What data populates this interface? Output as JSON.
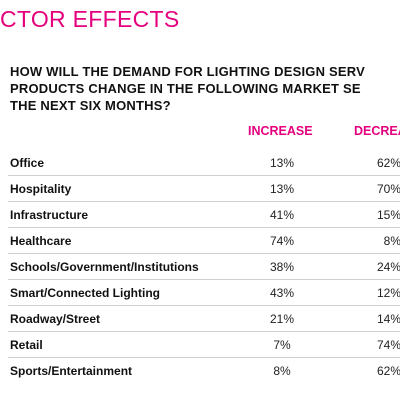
{
  "header": {
    "title": "CTOR EFFECTS"
  },
  "question": [
    "HOW WILL THE DEMAND FOR LIGHTING DESIGN SERV",
    "PRODUCTS CHANGE IN THE FOLLOWING MARKET SE",
    "THE NEXT SIX MONTHS?"
  ],
  "table": {
    "columns": [
      "INCREASE",
      "DECREA"
    ],
    "rows": [
      [
        "Office",
        "13%",
        "62%"
      ],
      [
        "Hospitality",
        "13%",
        "70%"
      ],
      [
        "Infrastructure",
        "41%",
        "15%"
      ],
      [
        "Healthcare",
        "74%",
        "8%"
      ],
      [
        "Schools/Government/Institutions",
        "38%",
        "24%"
      ],
      [
        "Smart/Connected Lighting",
        "43%",
        "12%"
      ],
      [
        "Roadway/Street",
        "21%",
        "14%"
      ],
      [
        "Retail",
        "7%",
        "74%"
      ],
      [
        "Sports/Entertainment",
        "8%",
        "62%"
      ]
    ]
  }
}
